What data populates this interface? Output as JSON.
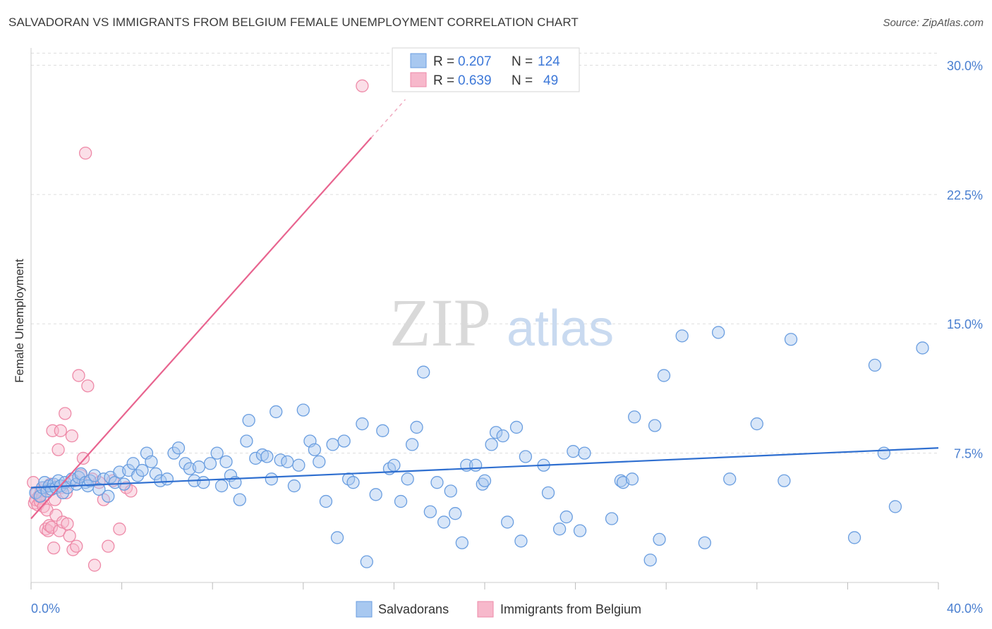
{
  "title": "SALVADORAN VS IMMIGRANTS FROM BELGIUM FEMALE UNEMPLOYMENT CORRELATION CHART",
  "source": "Source: ZipAtlas.com",
  "watermark": {
    "zip": "ZIP",
    "atlas": "atlas"
  },
  "colors": {
    "blue_fill": "#a8c8f0",
    "blue_stroke": "#6a9ee0",
    "blue_line": "#2f6fd0",
    "pink_fill": "#f7b8cb",
    "pink_stroke": "#ee8aa8",
    "pink_line": "#e8648f",
    "grid": "#dddddd",
    "axis_label": "#4a7fd0"
  },
  "legend": {
    "rows": [
      {
        "r_label": "R =",
        "r_value": "0.207",
        "n_label": "N =",
        "n_value": "124"
      },
      {
        "r_label": "R =",
        "r_value": "0.639",
        "n_label": "N =",
        "n_value": "49"
      }
    ]
  },
  "chart_data": {
    "type": "scatter",
    "title": "SALVADORAN VS IMMIGRANTS FROM BELGIUM FEMALE UNEMPLOYMENT CORRELATION CHART",
    "xlabel": "",
    "ylabel": "Female Unemployment",
    "xlim": [
      0,
      40
    ],
    "ylim": [
      0,
      31
    ],
    "x_tick_labels": [
      "0.0%",
      "40.0%"
    ],
    "y_ticks": [
      7.5,
      15.0,
      22.5,
      30.0
    ],
    "y_tick_labels": [
      "7.5%",
      "15.0%",
      "22.5%",
      "30.0%"
    ],
    "grid": true,
    "legend_position": "top-center",
    "series": [
      {
        "name": "Salvadorans",
        "color": "#a8c8f0",
        "trend": {
          "x0": 0,
          "y0": 5.5,
          "x1": 40,
          "y1": 7.8
        },
        "points": [
          [
            0.2,
            5.2
          ],
          [
            0.4,
            5.0
          ],
          [
            0.5,
            5.5
          ],
          [
            0.6,
            5.8
          ],
          [
            0.7,
            5.3
          ],
          [
            0.8,
            5.6
          ],
          [
            0.9,
            5.4
          ],
          [
            1.0,
            5.7
          ],
          [
            1.1,
            5.5
          ],
          [
            1.2,
            5.9
          ],
          [
            1.3,
            5.6
          ],
          [
            1.4,
            5.2
          ],
          [
            1.5,
            5.8
          ],
          [
            1.6,
            5.5
          ],
          [
            1.8,
            6.0
          ],
          [
            2.0,
            5.7
          ],
          [
            2.1,
            6.1
          ],
          [
            2.2,
            6.3
          ],
          [
            2.4,
            5.8
          ],
          [
            2.5,
            5.6
          ],
          [
            2.6,
            5.9
          ],
          [
            2.8,
            6.2
          ],
          [
            3.0,
            5.4
          ],
          [
            3.2,
            6.0
          ],
          [
            3.4,
            5.0
          ],
          [
            3.5,
            6.1
          ],
          [
            3.7,
            5.8
          ],
          [
            3.9,
            6.4
          ],
          [
            4.1,
            5.7
          ],
          [
            4.3,
            6.5
          ],
          [
            4.5,
            6.9
          ],
          [
            4.7,
            6.2
          ],
          [
            4.9,
            6.5
          ],
          [
            5.1,
            7.5
          ],
          [
            5.3,
            7.0
          ],
          [
            5.5,
            6.3
          ],
          [
            5.7,
            5.9
          ],
          [
            6.0,
            6.0
          ],
          [
            6.3,
            7.5
          ],
          [
            6.5,
            7.8
          ],
          [
            6.8,
            6.9
          ],
          [
            7.0,
            6.6
          ],
          [
            7.2,
            5.9
          ],
          [
            7.4,
            6.7
          ],
          [
            7.6,
            5.8
          ],
          [
            7.9,
            6.9
          ],
          [
            8.2,
            7.5
          ],
          [
            8.4,
            5.6
          ],
          [
            8.6,
            7.0
          ],
          [
            8.8,
            6.2
          ],
          [
            9.0,
            5.8
          ],
          [
            9.2,
            4.8
          ],
          [
            9.5,
            8.2
          ],
          [
            9.6,
            9.4
          ],
          [
            9.9,
            7.2
          ],
          [
            10.2,
            7.4
          ],
          [
            10.4,
            7.3
          ],
          [
            10.6,
            6.0
          ],
          [
            10.8,
            9.9
          ],
          [
            11.0,
            7.1
          ],
          [
            11.3,
            7.0
          ],
          [
            11.6,
            5.6
          ],
          [
            11.8,
            6.8
          ],
          [
            12.0,
            10.0
          ],
          [
            12.3,
            8.2
          ],
          [
            12.5,
            7.7
          ],
          [
            12.7,
            7.0
          ],
          [
            13.0,
            4.7
          ],
          [
            13.3,
            8.0
          ],
          [
            13.5,
            2.6
          ],
          [
            13.8,
            8.2
          ],
          [
            14.0,
            6.0
          ],
          [
            14.2,
            5.8
          ],
          [
            14.6,
            9.2
          ],
          [
            14.8,
            1.2
          ],
          [
            15.2,
            5.1
          ],
          [
            15.5,
            8.8
          ],
          [
            15.8,
            6.6
          ],
          [
            16.0,
            6.8
          ],
          [
            16.3,
            4.7
          ],
          [
            16.6,
            6.0
          ],
          [
            16.8,
            8.0
          ],
          [
            17.0,
            9.0
          ],
          [
            17.3,
            12.2
          ],
          [
            17.6,
            4.1
          ],
          [
            17.9,
            5.8
          ],
          [
            18.2,
            3.5
          ],
          [
            18.5,
            5.3
          ],
          [
            18.7,
            4.0
          ],
          [
            19.0,
            2.3
          ],
          [
            19.2,
            6.8
          ],
          [
            19.6,
            6.8
          ],
          [
            19.9,
            5.7
          ],
          [
            20.0,
            5.9
          ],
          [
            20.3,
            8.0
          ],
          [
            20.5,
            8.7
          ],
          [
            20.8,
            8.5
          ],
          [
            21.0,
            3.5
          ],
          [
            21.4,
            9.0
          ],
          [
            21.6,
            2.4
          ],
          [
            21.8,
            7.3
          ],
          [
            22.6,
            6.8
          ],
          [
            22.8,
            5.2
          ],
          [
            23.3,
            3.1
          ],
          [
            23.6,
            3.8
          ],
          [
            23.9,
            7.6
          ],
          [
            24.2,
            3.0
          ],
          [
            24.4,
            7.5
          ],
          [
            25.6,
            3.7
          ],
          [
            26.0,
            5.9
          ],
          [
            26.1,
            5.8
          ],
          [
            26.5,
            6.0
          ],
          [
            26.6,
            9.6
          ],
          [
            27.3,
            1.3
          ],
          [
            27.5,
            9.1
          ],
          [
            27.7,
            2.5
          ],
          [
            27.9,
            12.0
          ],
          [
            28.7,
            14.3
          ],
          [
            29.7,
            2.3
          ],
          [
            30.3,
            14.5
          ],
          [
            30.8,
            6.0
          ],
          [
            32.0,
            9.2
          ],
          [
            33.2,
            5.9
          ],
          [
            33.5,
            14.1
          ],
          [
            36.3,
            2.6
          ],
          [
            37.2,
            12.6
          ],
          [
            37.6,
            7.5
          ],
          [
            38.1,
            4.4
          ],
          [
            39.3,
            13.6
          ]
        ]
      },
      {
        "name": "Immigrants from Belgium",
        "color": "#f7b8cb",
        "trend": {
          "x0": 0,
          "y0": 3.7,
          "x1": 15.0,
          "y1": 25.8,
          "dashed_to_x": 16.5
        },
        "points": [
          [
            0.1,
            5.8
          ],
          [
            0.15,
            4.6
          ],
          [
            0.2,
            4.8
          ],
          [
            0.25,
            5.2
          ],
          [
            0.3,
            4.5
          ],
          [
            0.35,
            5.0
          ],
          [
            0.4,
            4.7
          ],
          [
            0.45,
            5.3
          ],
          [
            0.5,
            4.9
          ],
          [
            0.55,
            4.4
          ],
          [
            0.6,
            5.5
          ],
          [
            0.65,
            3.1
          ],
          [
            0.7,
            4.2
          ],
          [
            0.75,
            3.0
          ],
          [
            0.8,
            3.3
          ],
          [
            0.85,
            5.7
          ],
          [
            0.9,
            3.2
          ],
          [
            0.95,
            8.8
          ],
          [
            1.0,
            2.0
          ],
          [
            1.05,
            4.8
          ],
          [
            1.1,
            3.9
          ],
          [
            1.2,
            7.7
          ],
          [
            1.25,
            3.0
          ],
          [
            1.3,
            8.8
          ],
          [
            1.35,
            5.5
          ],
          [
            1.4,
            3.5
          ],
          [
            1.5,
            9.8
          ],
          [
            1.55,
            5.2
          ],
          [
            1.6,
            3.4
          ],
          [
            1.7,
            2.7
          ],
          [
            1.8,
            8.5
          ],
          [
            1.85,
            1.9
          ],
          [
            1.9,
            5.9
          ],
          [
            2.0,
            2.1
          ],
          [
            2.1,
            12.0
          ],
          [
            2.2,
            6.2
          ],
          [
            2.3,
            7.2
          ],
          [
            2.4,
            24.9
          ],
          [
            2.5,
            11.4
          ],
          [
            2.7,
            6.0
          ],
          [
            2.8,
            1.0
          ],
          [
            3.0,
            5.8
          ],
          [
            3.2,
            4.8
          ],
          [
            3.4,
            2.1
          ],
          [
            3.6,
            5.9
          ],
          [
            3.9,
            3.1
          ],
          [
            4.2,
            5.5
          ],
          [
            4.4,
            5.3
          ],
          [
            14.6,
            28.8
          ]
        ]
      }
    ]
  },
  "bottom_legend": [
    {
      "label": "Salvadorans"
    },
    {
      "label": "Immigrants from Belgium"
    }
  ]
}
